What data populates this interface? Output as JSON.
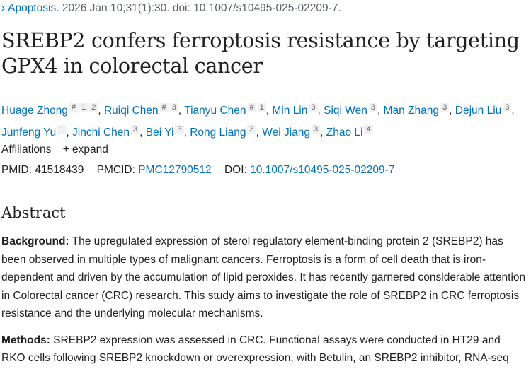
{
  "citation": {
    "journal": "Apoptosis.",
    "details": "2026 Jan 10;31(1):30. doi: 10.1007/s10495-025-02209-7."
  },
  "title": "SREBP2 confers ferroptosis resistance by targeting GPX4 in colorectal cancer",
  "authors": [
    {
      "name": "Huage Zhong",
      "sups": [
        "#",
        "1",
        "2"
      ]
    },
    {
      "name": "Ruiqi Chen",
      "sups": [
        "#",
        "3"
      ]
    },
    {
      "name": "Tianyu Chen",
      "sups": [
        "#",
        "1"
      ]
    },
    {
      "name": "Min Lin",
      "sups": [
        "3"
      ]
    },
    {
      "name": "Siqi Wen",
      "sups": [
        "3"
      ]
    },
    {
      "name": "Man Zhang",
      "sups": [
        "3"
      ]
    },
    {
      "name": "Dejun Liu",
      "sups": [
        "3"
      ]
    },
    {
      "name": "Junfeng Yu",
      "sups": [
        "1"
      ]
    },
    {
      "name": "Jinchi Chen",
      "sups": [
        "3"
      ]
    },
    {
      "name": "Bei Yi",
      "sups": [
        "3"
      ]
    },
    {
      "name": "Rong Liang",
      "sups": [
        "3"
      ]
    },
    {
      "name": "Wei Jiang",
      "sups": [
        "3"
      ]
    },
    {
      "name": "Zhao Li",
      "sups": [
        "4"
      ]
    }
  ],
  "affiliations": {
    "label": "Affiliations",
    "expand": "+ expand"
  },
  "ids": {
    "pmid_label": "PMID:",
    "pmid": "41518439",
    "pmcid_label": "PMCID:",
    "pmcid": "PMC12790512",
    "doi_label": "DOI:",
    "doi": "10.1007/s10495-025-02209-7"
  },
  "abstract": {
    "heading": "Abstract",
    "sections": [
      {
        "label": "Background:",
        "text": "The upregulated expression of sterol regulatory element-binding protein 2 (SREBP2) has been observed in multiple types of malignant cancers. Ferroptosis is a form of cell death that is iron-dependent and driven by the accumulation of lipid peroxides. It has recently garnered considerable attention in Colorectal cancer (CRC) research. This study aims to investigate the role of SREBP2 in CRC ferroptosis resistance and the underlying molecular mechanisms."
      },
      {
        "label": "Methods:",
        "text": "SREBP2 expression was assessed in CRC. Functional assays were conducted in HT29 and RKO cells following SREBP2 knockdown or overexpression, with Betulin, an SREBP2 inhibitor, RNA-seq"
      }
    ]
  },
  "colors": {
    "link": "#0071bc",
    "text": "#212121",
    "muted": "#5b616b"
  }
}
